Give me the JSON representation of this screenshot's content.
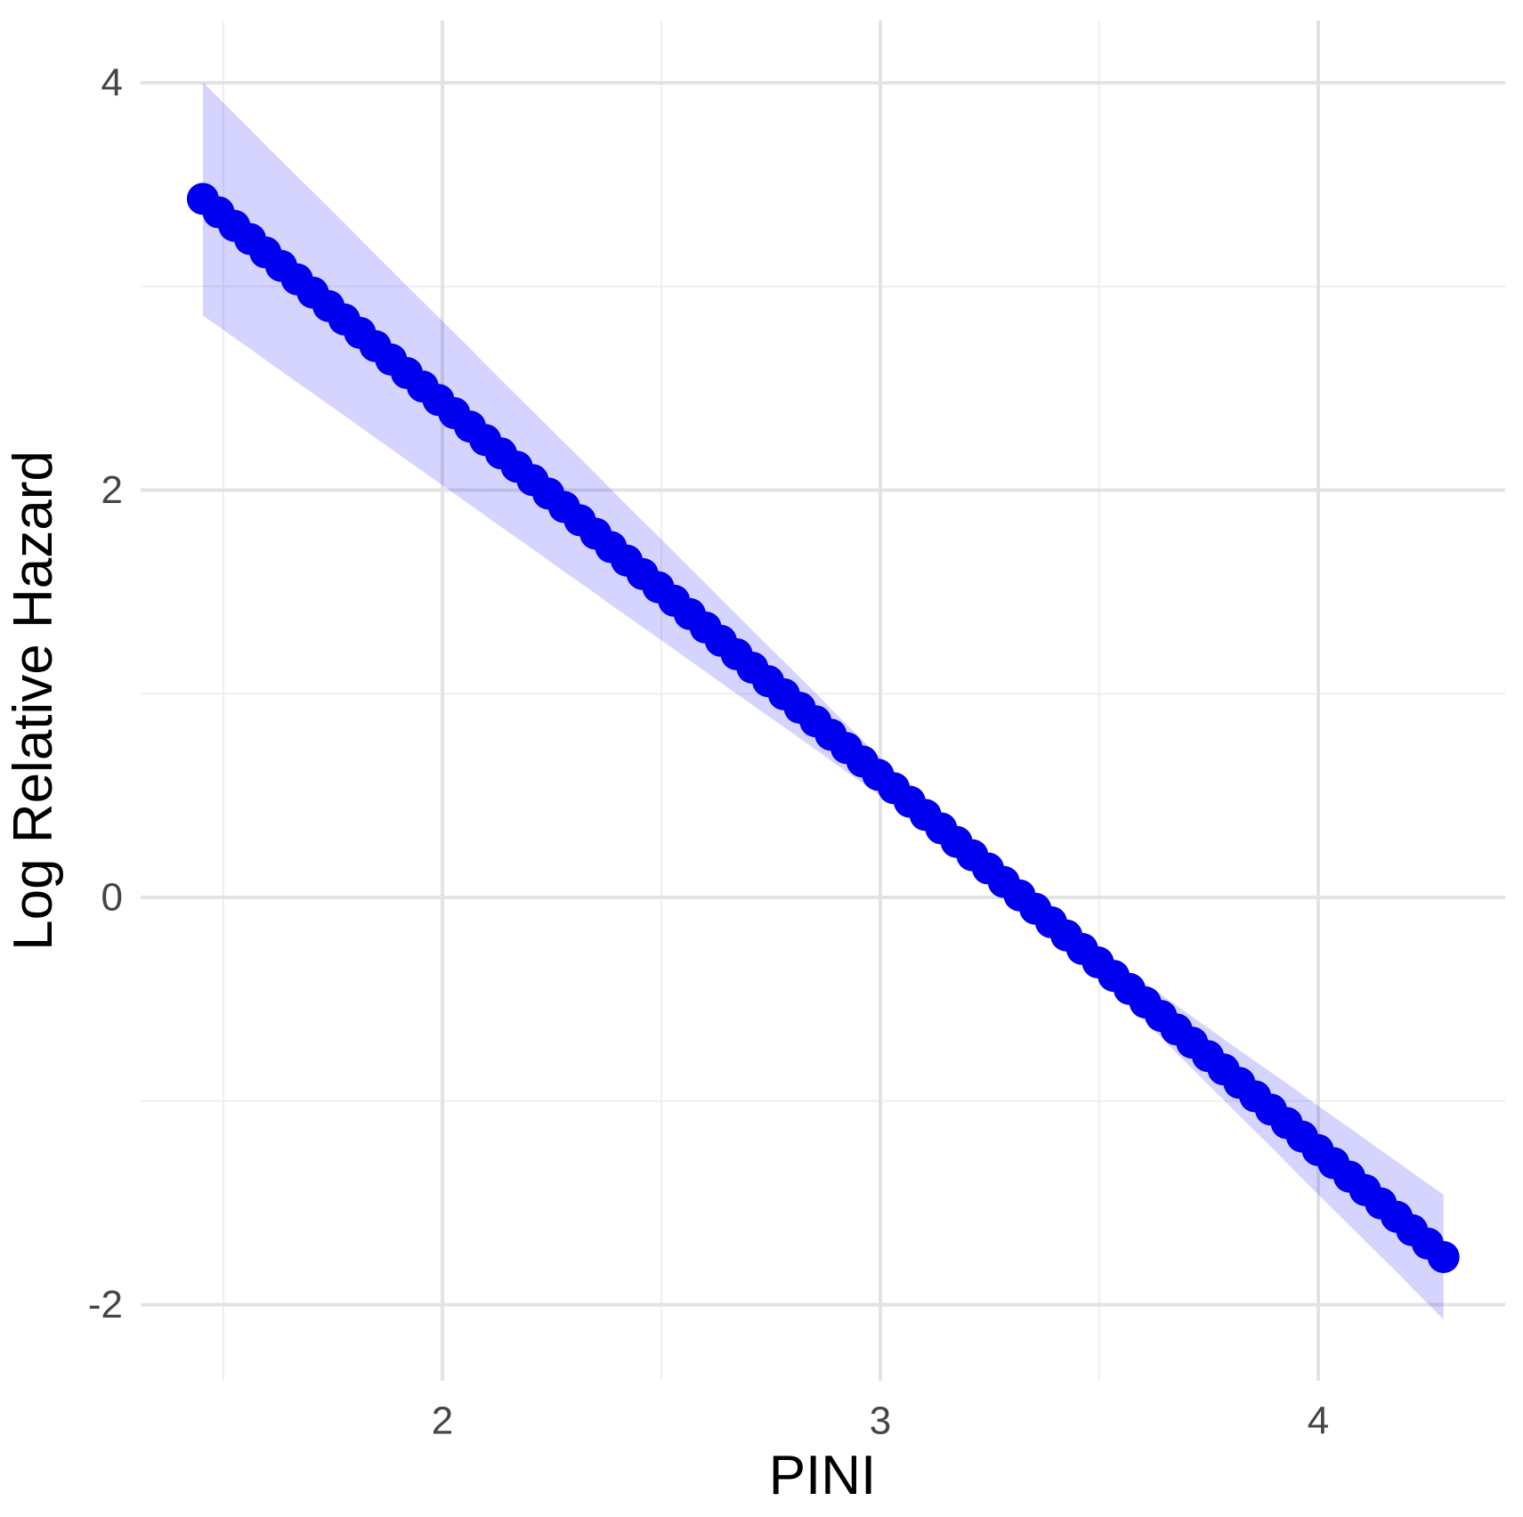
{
  "chart_data": {
    "type": "scatter",
    "title": "",
    "xlabel": "PINI",
    "ylabel": "Log Relative Hazard",
    "x": [
      1.453,
      1.489,
      1.525,
      1.561,
      1.596,
      1.632,
      1.668,
      1.704,
      1.74,
      1.776,
      1.812,
      1.847,
      1.883,
      1.919,
      1.955,
      1.991,
      2.027,
      2.063,
      2.098,
      2.134,
      2.17,
      2.206,
      2.242,
      2.278,
      2.314,
      2.35,
      2.385,
      2.421,
      2.457,
      2.493,
      2.529,
      2.565,
      2.601,
      2.636,
      2.672,
      2.708,
      2.744,
      2.78,
      2.816,
      2.852,
      2.887,
      2.923,
      2.959,
      2.995,
      3.031,
      3.067,
      3.103,
      3.139,
      3.174,
      3.21,
      3.246,
      3.282,
      3.318,
      3.354,
      3.39,
      3.425,
      3.461,
      3.497,
      3.533,
      3.569,
      3.605,
      3.641,
      3.676,
      3.712,
      3.748,
      3.784,
      3.82,
      3.856,
      3.892,
      3.928,
      3.963,
      3.999,
      4.035,
      4.071,
      4.107,
      4.143,
      4.179,
      4.214,
      4.25,
      4.286
    ],
    "series": [
      {
        "name": "log-relative-hazard-fit",
        "values": [
          3.43,
          3.364,
          3.298,
          3.233,
          3.167,
          3.101,
          3.035,
          2.97,
          2.904,
          2.838,
          2.772,
          2.707,
          2.641,
          2.575,
          2.509,
          2.443,
          2.378,
          2.312,
          2.246,
          2.18,
          2.115,
          2.049,
          1.983,
          1.917,
          1.852,
          1.786,
          1.72,
          1.654,
          1.588,
          1.523,
          1.457,
          1.391,
          1.325,
          1.26,
          1.194,
          1.128,
          1.062,
          0.997,
          0.931,
          0.865,
          0.799,
          0.733,
          0.668,
          0.602,
          0.536,
          0.47,
          0.405,
          0.339,
          0.273,
          0.207,
          0.142,
          0.076,
          0.01,
          -0.056,
          -0.122,
          -0.187,
          -0.253,
          -0.319,
          -0.385,
          -0.45,
          -0.516,
          -0.582,
          -0.648,
          -0.713,
          -0.779,
          -0.845,
          -0.911,
          -0.977,
          -1.042,
          -1.108,
          -1.174,
          -1.24,
          -1.305,
          -1.371,
          -1.437,
          -1.503,
          -1.568,
          -1.634,
          -1.7,
          -1.766
        ]
      }
    ],
    "ci_lower": [
      2.857,
      2.803,
      2.748,
      2.694,
      2.639,
      2.584,
      2.529,
      2.475,
      2.42,
      2.366,
      2.311,
      2.257,
      2.202,
      2.147,
      2.092,
      2.037,
      1.983,
      1.928,
      1.874,
      1.819,
      1.765,
      1.71,
      1.655,
      1.6,
      1.546,
      1.491,
      1.436,
      1.382,
      1.327,
      1.273,
      1.218,
      1.163,
      1.108,
      1.054,
      0.999,
      0.945,
      0.89,
      0.836,
      0.781,
      0.726,
      0.671,
      0.616,
      0.562,
      0.507,
      0.453,
      0.398,
      0.344,
      0.289,
      0.234,
      0.179,
      0.125,
      0.07,
      0.004,
      -0.073,
      -0.15,
      -0.226,
      -0.303,
      -0.38,
      -0.457,
      -0.533,
      -0.61,
      -0.688,
      -0.765,
      -0.841,
      -0.918,
      -0.995,
      -1.072,
      -1.149,
      -1.225,
      -1.303,
      -1.38,
      -1.457,
      -1.533,
      -1.61,
      -1.687,
      -1.764,
      -1.84,
      -1.917,
      -1.995,
      -2.072
    ],
    "ci_upper": [
      4.003,
      3.926,
      3.848,
      3.772,
      3.695,
      3.618,
      3.541,
      3.465,
      3.388,
      3.311,
      3.233,
      3.157,
      3.08,
      3.003,
      2.926,
      2.849,
      2.773,
      2.696,
      2.619,
      2.541,
      2.465,
      2.388,
      2.311,
      2.234,
      2.158,
      2.081,
      2.004,
      1.926,
      1.849,
      1.773,
      1.696,
      1.619,
      1.542,
      1.466,
      1.389,
      1.311,
      1.234,
      1.158,
      1.081,
      1.004,
      0.927,
      0.85,
      0.774,
      0.697,
      0.619,
      0.542,
      0.466,
      0.389,
      0.312,
      0.235,
      0.159,
      0.082,
      0.016,
      -0.039,
      -0.094,
      -0.148,
      -0.203,
      -0.258,
      -0.313,
      -0.367,
      -0.422,
      -0.476,
      -0.531,
      -0.585,
      -0.64,
      -0.695,
      -0.75,
      -0.805,
      -0.859,
      -0.913,
      -0.968,
      -1.023,
      -1.077,
      -1.132,
      -1.187,
      -1.242,
      -1.296,
      -1.351,
      -1.405,
      -1.46
    ],
    "x_ticks": [
      2,
      3,
      4
    ],
    "y_ticks": [
      4,
      2,
      0,
      -2
    ],
    "x_minor_ticks": [
      1.5,
      2.5,
      3.5
    ],
    "y_minor_ticks": [
      3,
      1,
      -1
    ],
    "xlim": [
      1.311,
      4.428
    ],
    "ylim": [
      -2.376,
      4.307
    ],
    "grid": true,
    "legend": false
  },
  "style": {
    "point_color": "#0000EE",
    "line_color": "#0000EE",
    "ribbon_color": "#0000FF",
    "ribbon_opacity": 0.17,
    "grid_major_color": "#e3e3e3",
    "grid_minor_color": "#efefef",
    "tick_label_color": "#454545",
    "axis_title_color": "#000000",
    "background_color": "#ffffff"
  }
}
